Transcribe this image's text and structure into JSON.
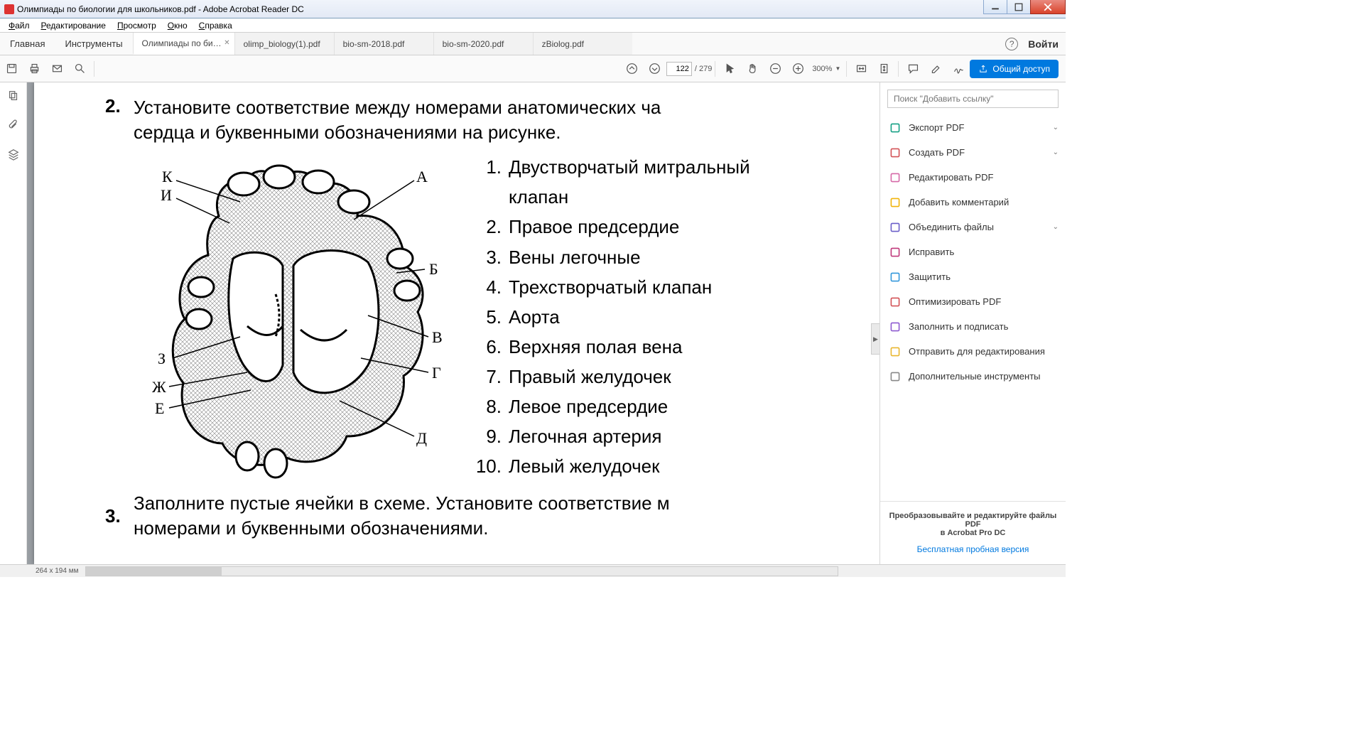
{
  "window": {
    "title": "Олимпиады по биологии для школьников.pdf - Adobe Acrobat Reader DC"
  },
  "menus": [
    "Файл",
    "Редактирование",
    "Просмотр",
    "Окно",
    "Справка"
  ],
  "menus_underline": [
    0,
    0,
    0,
    0,
    0
  ],
  "main_tabs": [
    "Главная",
    "Инструменты"
  ],
  "doc_tabs": [
    {
      "label": "Олимпиады по би…",
      "active": true,
      "closeable": true
    },
    {
      "label": "olimp_biology(1).pdf",
      "active": false
    },
    {
      "label": "bio-sm-2018.pdf",
      "active": false
    },
    {
      "label": "bio-sm-2020.pdf",
      "active": false
    },
    {
      "label": "zBiolog.pdf",
      "active": false
    }
  ],
  "login": "Войти",
  "toolbar": {
    "page_current": "122",
    "page_total": "/ 279",
    "zoom": "300%"
  },
  "share_button": "Общий доступ",
  "right_panel": {
    "search_placeholder": "Поиск \"Добавить ссылку\"",
    "tools": [
      {
        "label": "Экспорт PDF",
        "color": "#16a085",
        "expandable": true
      },
      {
        "label": "Создать PDF",
        "color": "#d35357",
        "expandable": true
      },
      {
        "label": "Редактировать PDF",
        "color": "#d66aa8"
      },
      {
        "label": "Добавить комментарий",
        "color": "#f1b40b"
      },
      {
        "label": "Объединить файлы",
        "color": "#6b5fc9",
        "expandable": true
      },
      {
        "label": "Исправить",
        "color": "#c0397b"
      },
      {
        "label": "Защитить",
        "color": "#3498db"
      },
      {
        "label": "Оптимизировать PDF",
        "color": "#d35357"
      },
      {
        "label": "Заполнить и подписать",
        "color": "#8e5bd0"
      },
      {
        "label": "Отправить для редактирования",
        "color": "#e9b730"
      },
      {
        "label": "Дополнительные инструменты",
        "color": "#888"
      }
    ],
    "promo_line1": "Преобразовывайте и редактируйте файлы PDF",
    "promo_line2": "в Acrobat Pro DC",
    "promo_link": "Бесплатная пробная версия"
  },
  "document": {
    "q2_num": "2.",
    "q2_text_l1": "Установите соответствие между номерами анатомических ча",
    "q2_text_l2": "сердца и буквенными обозначениями на рисунке.",
    "q3_num": "3.",
    "q3_text_l1": "Заполните пустые ячейки в схеме. Установите соответствие м",
    "q3_text_l2": "номерами и буквенными обозначениями.",
    "diagram_labels": {
      "A": "А",
      "B": "Б",
      "V": "В",
      "G": "Г",
      "D": "Д",
      "E": "Е",
      "Zh": "Ж",
      "Z": "З",
      "I": "И",
      "K": "К"
    },
    "anatomy_list": [
      "Двустворчатый митральный клапан",
      "Правое предсердие",
      "Вены легочные",
      "Трехстворчатый клапан",
      "Аорта",
      "Верхняя полая вена",
      "Правый желудочек",
      "Левое предсердие",
      "Легочная артерия",
      "Левый желудочек"
    ]
  },
  "statusbar": {
    "dims": "264 x 194 мм"
  }
}
